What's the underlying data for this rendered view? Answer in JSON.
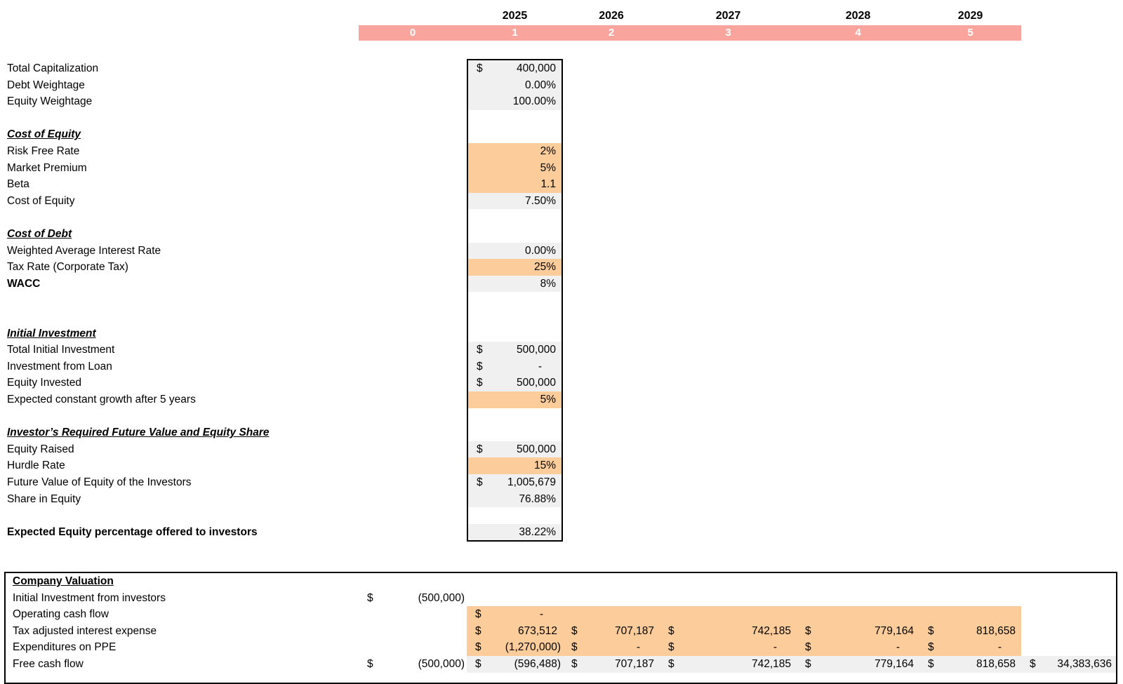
{
  "colors": {
    "period_band": "#F9A59E",
    "input_cell": "#FCCD9B",
    "calc_cell": "#F0F0F0"
  },
  "timeline": {
    "years": [
      "2025",
      "2026",
      "2027",
      "2028",
      "2029"
    ],
    "periods": [
      "0",
      "1",
      "2",
      "3",
      "4",
      "5"
    ]
  },
  "assumptions": {
    "rows": [
      {
        "label": "Total Capitalization",
        "style": "normal",
        "bg": "calc",
        "cur": "$",
        "val": "400,000"
      },
      {
        "label": "Debt Weightage",
        "style": "normal",
        "bg": "calc",
        "val": "0.00%"
      },
      {
        "label": "Equity Weightage",
        "style": "normal",
        "bg": "calc",
        "val": "100.00%"
      },
      {
        "label": "",
        "style": "normal",
        "bg": "none"
      },
      {
        "label": "Cost of Equity",
        "style": "section",
        "bg": "none"
      },
      {
        "label": "Risk Free Rate",
        "style": "normal",
        "bg": "input",
        "val": "2%"
      },
      {
        "label": "Market Premium",
        "style": "normal",
        "bg": "input",
        "val": "5%"
      },
      {
        "label": "Beta",
        "style": "normal",
        "bg": "input",
        "val": "1.1"
      },
      {
        "label": "Cost of Equity",
        "style": "normal",
        "bg": "calc",
        "val": "7.50%"
      },
      {
        "label": "",
        "style": "normal",
        "bg": "none"
      },
      {
        "label": "Cost of Debt",
        "style": "section",
        "bg": "none"
      },
      {
        "label": "Weighted Average Interest Rate",
        "style": "normal",
        "bg": "calc",
        "val": "0.00%"
      },
      {
        "label": "Tax Rate (Corporate Tax)",
        "style": "normal",
        "bg": "input",
        "val": "25%"
      },
      {
        "label": "WACC",
        "style": "bold",
        "bg": "calc",
        "val": "8%"
      },
      {
        "label": "",
        "style": "normal",
        "bg": "none"
      },
      {
        "label": "",
        "style": "normal",
        "bg": "none"
      },
      {
        "label": "Initial Investment",
        "style": "section",
        "bg": "none"
      },
      {
        "label": "Total Initial Investment",
        "style": "normal",
        "bg": "calc",
        "cur": "$",
        "val": "500,000"
      },
      {
        "label": "Investment from Loan",
        "style": "normal",
        "bg": "calc",
        "cur": "$",
        "val": "-"
      },
      {
        "label": "Equity Invested",
        "style": "normal",
        "bg": "calc",
        "cur": "$",
        "val": "500,000"
      },
      {
        "label": "Expected constant growth after 5 years",
        "style": "normal",
        "bg": "input",
        "val": "5%"
      },
      {
        "label": "",
        "style": "normal",
        "bg": "none"
      },
      {
        "label": "Investor’s Required Future Value and Equity Share",
        "style": "section",
        "bg": "none"
      },
      {
        "label": "Equity Raised",
        "style": "normal",
        "bg": "calc",
        "cur": "$",
        "val": "500,000"
      },
      {
        "label": "Hurdle Rate",
        "style": "normal",
        "bg": "input",
        "val": "15%"
      },
      {
        "label": "Future Value of Equity of the Investors",
        "style": "normal",
        "bg": "calc",
        "cur": "$",
        "val": "1,005,679"
      },
      {
        "label": "Share in Equity",
        "style": "normal",
        "bg": "calc",
        "val": "76.88%"
      },
      {
        "label": "",
        "style": "normal",
        "bg": "none"
      },
      {
        "label": "Expected Equity percentage offered to investors",
        "style": "bold",
        "bg": "calc",
        "val": "38.22%"
      }
    ]
  },
  "valuation": {
    "title": "Company Valuation",
    "rows": [
      {
        "label": "Initial Investment from investors",
        "cells": [
          {
            "col": 0,
            "cur": "$",
            "val": "(500,000)"
          }
        ]
      },
      {
        "label": "Operating cash flow",
        "band": {
          "bg": "input",
          "from": 1,
          "to": 5
        },
        "cells": [
          {
            "col": 1,
            "cur": "$",
            "val": "-"
          }
        ]
      },
      {
        "label": "Tax adjusted interest expense",
        "band": {
          "bg": "input",
          "from": 1,
          "to": 5
        },
        "cells": [
          {
            "col": 1,
            "cur": "$",
            "val": "673,512"
          },
          {
            "col": 2,
            "cur": "$",
            "val": "707,187"
          },
          {
            "col": 3,
            "cur": "$",
            "val": "742,185"
          },
          {
            "col": 4,
            "cur": "$",
            "val": "779,164"
          },
          {
            "col": 5,
            "cur": "$",
            "val": "818,658"
          }
        ]
      },
      {
        "label": "Expenditures on PPE",
        "band": {
          "bg": "input",
          "from": 1,
          "to": 5
        },
        "cells": [
          {
            "col": 1,
            "cur": "$",
            "val": "(1,270,000)"
          },
          {
            "col": 2,
            "cur": "$",
            "val": "-"
          },
          {
            "col": 3,
            "cur": "$",
            "val": "-"
          },
          {
            "col": 4,
            "cur": "$",
            "val": "-"
          },
          {
            "col": 5,
            "cur": "$",
            "val": "-"
          }
        ]
      },
      {
        "label": "Free cash flow",
        "band": {
          "bg": "calc",
          "from": 1,
          "to": 6
        },
        "cells": [
          {
            "col": 0,
            "cur": "$",
            "val": "(500,000)"
          },
          {
            "col": 1,
            "cur": "$",
            "val": "(596,488)"
          },
          {
            "col": 2,
            "cur": "$",
            "val": "707,187"
          },
          {
            "col": 3,
            "cur": "$",
            "val": "742,185"
          },
          {
            "col": 4,
            "cur": "$",
            "val": "779,164"
          },
          {
            "col": 5,
            "cur": "$",
            "val": "818,658"
          },
          {
            "col": 6,
            "cur": "$",
            "val": "34,383,636"
          }
        ]
      }
    ]
  }
}
